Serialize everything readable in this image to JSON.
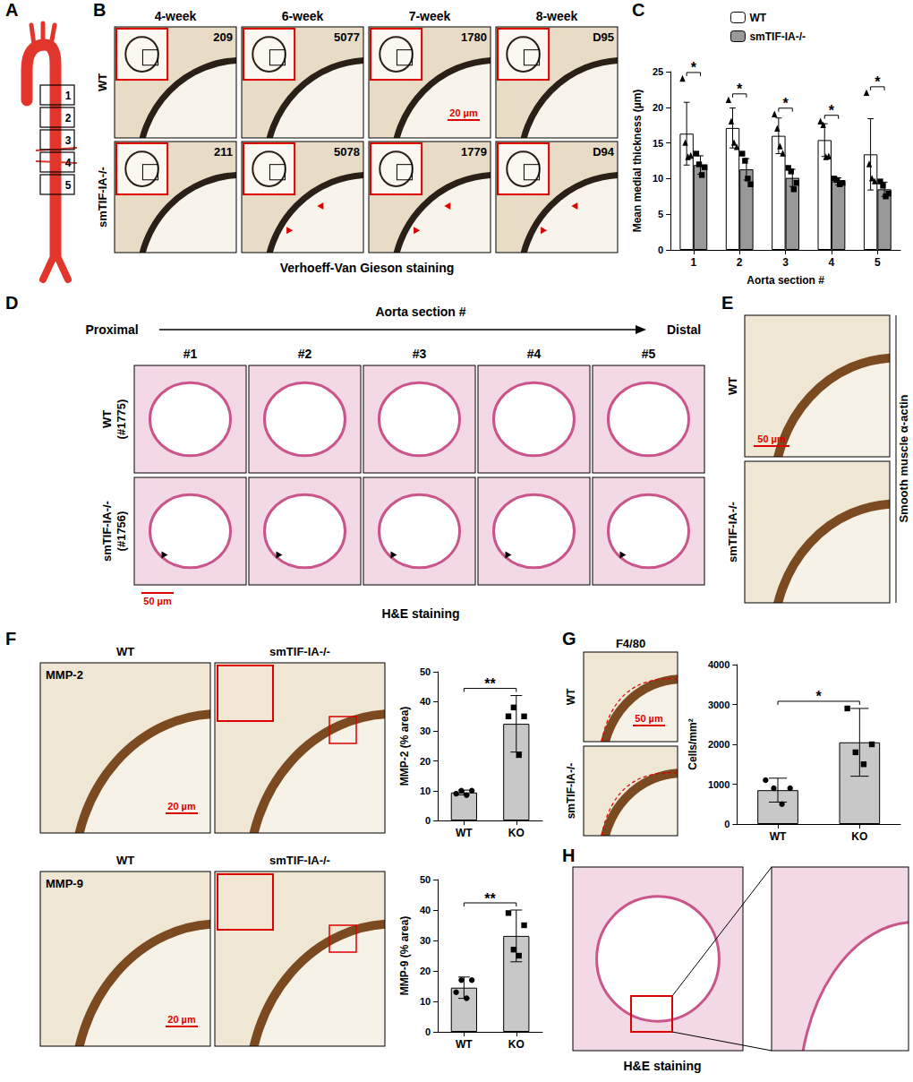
{
  "panels": {
    "A": {
      "label": "A",
      "sections": [
        "1",
        "2",
        "3",
        "4",
        "5"
      ]
    },
    "B": {
      "label": "B",
      "columns": [
        "4-week",
        "6-week",
        "7-week",
        "8-week"
      ],
      "rows": [
        "WT",
        "smTIF-IA-/-"
      ],
      "sample_ids": [
        [
          "209",
          "5077",
          "1780",
          "D95"
        ],
        [
          "211",
          "5078",
          "1779",
          "D94"
        ]
      ],
      "scale_bar": "20 µm",
      "caption": "Verhoeff-Van Gieson staining"
    },
    "C": {
      "label": "C"
    },
    "D": {
      "label": "D",
      "header": "Aorta section #",
      "start": "Proximal",
      "end": "Distal",
      "columns": [
        "#1",
        "#2",
        "#3",
        "#4",
        "#5"
      ],
      "rows": [
        [
          "WT",
          "(#1775)"
        ],
        [
          "smTIF-IA-/-",
          "(#1756)"
        ]
      ],
      "scale_bar": "50 µm",
      "caption": "H&E staining"
    },
    "E": {
      "label": "E",
      "rows": [
        "WT",
        "smTIF-IA-/-"
      ],
      "scale_bar": "50 µm",
      "caption": "Smooth muscle α-actin"
    },
    "F": {
      "label": "F",
      "columns": [
        "WT",
        "smTIF-IA-/-"
      ],
      "stains": [
        "MMP-2",
        "MMP-9"
      ],
      "scale_bar": "20 µm"
    },
    "G": {
      "label": "G",
      "stain": "F4/80",
      "rows": [
        "WT",
        "smTIF-IA-/-"
      ],
      "scale_bar": "50 µm"
    },
    "H": {
      "label": "H",
      "caption": "H&E staining"
    }
  },
  "chart_data": [
    {
      "type": "bar",
      "ylabel": "Mean medial thickness (µm)",
      "xlabel": "Aorta section #",
      "categories": [
        "1",
        "2",
        "3",
        "4",
        "5"
      ],
      "ylim": [
        0,
        25
      ],
      "yticks": [
        0,
        5,
        10,
        15,
        20,
        25
      ],
      "grid": false,
      "legend": "top",
      "series": [
        {
          "name": "WT",
          "color": "#ffffff",
          "marker": "triangle",
          "values": [
            16.3,
            17.1,
            16.0,
            15.4,
            13.4
          ],
          "errors": [
            4.4,
            2.8,
            2.5,
            2.3,
            5.0
          ],
          "points": [
            [
              24,
              15,
              13,
              13.2
            ],
            [
              21,
              18,
              15,
              14.4
            ],
            [
              19,
              17,
              14.5,
              13.5
            ],
            [
              18,
              17.5,
              13,
              13.1
            ],
            [
              22,
              12,
              10,
              9.6
            ]
          ]
        },
        {
          "name": "smTIF-IA-/-",
          "color": "#999999",
          "marker": "square",
          "values": [
            11.9,
            11.3,
            10.1,
            9.6,
            8.5
          ],
          "errors": [
            1.3,
            1.5,
            1.2,
            0.5,
            1.0
          ],
          "points": [
            [
              13.5,
              12,
              10.5,
              11.6
            ],
            [
              13.5,
              12.5,
              10,
              9.2
            ],
            [
              11.5,
              11,
              8.5,
              9.4
            ],
            [
              10,
              9.8,
              9.2,
              9.4
            ],
            [
              9.6,
              9,
              7.5,
              7.9
            ]
          ]
        }
      ],
      "significance": [
        "*",
        "*",
        "*",
        "*",
        "*"
      ]
    },
    {
      "type": "bar",
      "ylabel": "MMP-2 (% area)",
      "categories": [
        "WT",
        "KO"
      ],
      "ylim": [
        0,
        50
      ],
      "yticks": [
        0,
        10,
        20,
        30,
        40,
        50
      ],
      "grid": false,
      "series": [
        {
          "color": "#c8c8c8",
          "markers": [
            "circle",
            "square"
          ],
          "values": [
            9.4,
            32.5
          ],
          "errors": [
            0.8,
            9.5
          ],
          "points": [
            [
              9,
              10,
              8.5,
              10
            ],
            [
              35,
              38,
              22,
              35
            ]
          ]
        }
      ],
      "significance": "**"
    },
    {
      "type": "bar",
      "ylabel": "MMP-9 (% area)",
      "categories": [
        "WT",
        "KO"
      ],
      "ylim": [
        0,
        50
      ],
      "yticks": [
        0,
        10,
        20,
        30,
        40,
        50
      ],
      "grid": false,
      "series": [
        {
          "color": "#c8c8c8",
          "markers": [
            "circle",
            "square"
          ],
          "values": [
            14.5,
            31.5
          ],
          "errors": [
            3.5,
            8.5
          ],
          "points": [
            [
              13,
              17,
              11,
              17
            ],
            [
              39,
              27,
              25,
              35
            ]
          ]
        }
      ],
      "significance": "**"
    },
    {
      "type": "bar",
      "ylabel": "Cells/mm²",
      "categories": [
        "WT",
        "KO"
      ],
      "ylim": [
        0,
        4000
      ],
      "yticks": [
        0,
        1000,
        2000,
        3000,
        4000
      ],
      "grid": false,
      "series": [
        {
          "color": "#c8c8c8",
          "markers": [
            "circle",
            "square"
          ],
          "values": [
            850,
            2050
          ],
          "errors": [
            300,
            850
          ],
          "points": [
            [
              1100,
              900,
              500,
              900
            ],
            [
              2900,
              1800,
              1500,
              2000
            ]
          ]
        }
      ],
      "significance": "*"
    }
  ]
}
